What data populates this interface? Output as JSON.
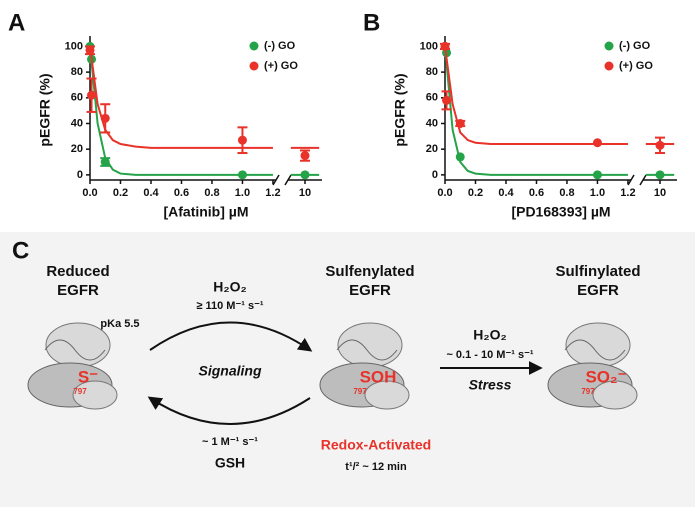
{
  "chart_data": [
    {
      "type": "scatter",
      "panel": "A",
      "ylabel": "pEGFR (%)",
      "xlabel": "[Afatinib] µM",
      "xlim": [
        0,
        1.22
      ],
      "xticks": [
        {
          "value": 0,
          "label": "0.0"
        },
        0.2,
        0.4,
        0.6,
        0.8,
        {
          "value": 1,
          "label": "1.0"
        },
        1.2
      ],
      "x2lim": [
        9.4,
        10.6
      ],
      "x2ticks": [
        10
      ],
      "ylim": [
        -4,
        105
      ],
      "yticks": [
        0,
        20,
        40,
        60,
        80,
        100
      ],
      "legend": "upper right",
      "x": [
        0,
        0.01,
        0.1,
        1,
        10
      ],
      "fit_x": [
        0,
        0.05,
        0.1,
        0.15,
        0.2,
        0.3,
        0.4,
        0.6,
        0.8,
        1,
        1.2,
        9.5,
        10.5
      ],
      "series": [
        {
          "name": "(-) GO",
          "color": "#25a349",
          "values": [
            100,
            90,
            10,
            0,
            0
          ],
          "errors": [
            0,
            0,
            3,
            0,
            0
          ],
          "fit_values": [
            100,
            40,
            13,
            4,
            1,
            0,
            0,
            0,
            0,
            0,
            0,
            0,
            0
          ]
        },
        {
          "name": "(+) GO",
          "color": "#e8322a",
          "values": [
            97,
            62,
            44,
            27,
            15
          ],
          "errors": [
            3,
            13,
            11,
            10,
            4
          ],
          "fit_values": [
            100,
            55,
            35,
            27,
            24,
            22,
            21,
            21,
            21,
            21,
            21,
            21,
            21
          ]
        }
      ]
    },
    {
      "type": "scatter",
      "panel": "B",
      "ylabel": "pEGFR (%)",
      "xlabel": "[PD168393] µM",
      "xlim": [
        0,
        1.22
      ],
      "xticks": [
        {
          "value": 0,
          "label": "0.0"
        },
        0.2,
        0.4,
        0.6,
        0.8,
        {
          "value": 1,
          "label": "1.0"
        },
        1.2
      ],
      "x2lim": [
        9.4,
        10.6
      ],
      "x2ticks": [
        10
      ],
      "ylim": [
        -4,
        105
      ],
      "yticks": [
        0,
        20,
        40,
        60,
        80,
        100
      ],
      "legend": "upper right",
      "x": [
        0,
        0.01,
        0.1,
        1,
        10
      ],
      "fit_x": [
        0,
        0.05,
        0.1,
        0.15,
        0.2,
        0.3,
        0.4,
        0.6,
        0.8,
        1,
        1.2,
        9.5,
        10.5
      ],
      "series": [
        {
          "name": "(-) GO",
          "color": "#25a349",
          "values": [
            100,
            95,
            14,
            0,
            0
          ],
          "errors": [
            0,
            0,
            0,
            0,
            0
          ],
          "fit_values": [
            100,
            35,
            10,
            3,
            1,
            0,
            0,
            0,
            0,
            0,
            0,
            0,
            0
          ]
        },
        {
          "name": "(+) GO",
          "color": "#e8322a",
          "values": [
            100,
            58,
            40,
            25,
            23
          ],
          "errors": [
            2,
            7,
            2,
            0,
            6
          ],
          "fit_values": [
            100,
            55,
            33,
            27,
            25,
            24,
            24,
            24,
            24,
            24,
            24,
            24,
            24
          ]
        }
      ]
    }
  ],
  "diagram": {
    "panel": "C",
    "states": [
      {
        "title": [
          "Reduced",
          "EGFR"
        ],
        "site": "S⁻",
        "residue": "797"
      },
      {
        "title": [
          "Sulfenylated",
          "EGFR"
        ],
        "site": "SOH",
        "residue": "797"
      },
      {
        "title": [
          "Sulfinylated",
          "EGFR"
        ],
        "site": "SO₂⁻",
        "residue": "797"
      }
    ],
    "pka": "pKa 5.5",
    "forward": {
      "reagent": "H₂O₂",
      "rate": "≥ 110 M⁻¹ s⁻¹",
      "label": "Signaling"
    },
    "reverse": {
      "rate": "~ 1 M⁻¹ s⁻¹",
      "reagent": "GSH"
    },
    "activated": "Redox-Activated",
    "half_life": "t¹/² ~ 12 min",
    "oxidation": {
      "reagent": "H₂O₂",
      "rate": "~ 0.1 - 10 M⁻¹ s⁻¹",
      "label": "Stress"
    }
  }
}
